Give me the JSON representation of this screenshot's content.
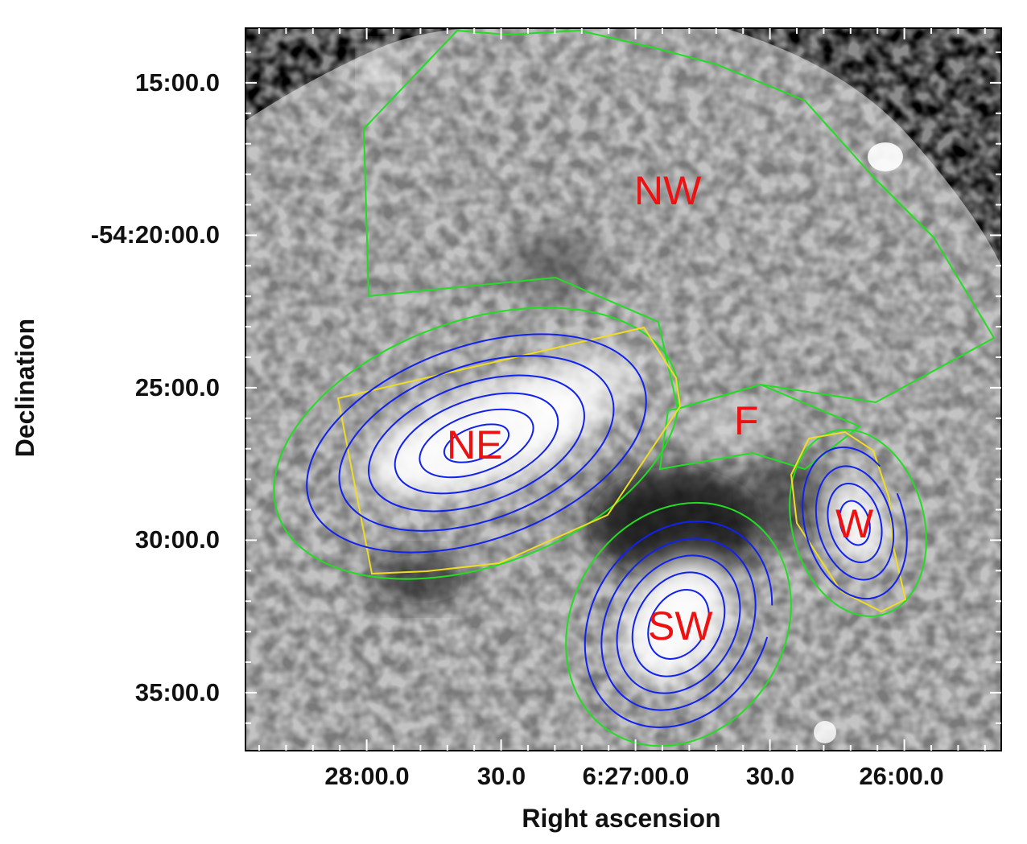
{
  "axes": {
    "x_label": "Right ascension",
    "y_label": "Declination",
    "x_ticks": [
      "28:00.0",
      "30.0",
      "6:27:00.0",
      "30.0",
      "26:00.0"
    ],
    "y_ticks": [
      "15:00.0",
      "-54:20:00.0",
      "25:00.0",
      "30:00.0",
      "35:00.0"
    ]
  },
  "regions": [
    {
      "id": "NW",
      "label": "NW"
    },
    {
      "id": "NE",
      "label": "NE"
    },
    {
      "id": "F",
      "label": "F"
    },
    {
      "id": "W",
      "label": "W"
    },
    {
      "id": "SW",
      "label": "SW"
    }
  ],
  "colors": {
    "region_outline": "#22dd22",
    "inner_outline": "#eedd22",
    "contours": "#1122ee",
    "region_labels": "#ee1111",
    "background_sky": "#000000"
  }
}
